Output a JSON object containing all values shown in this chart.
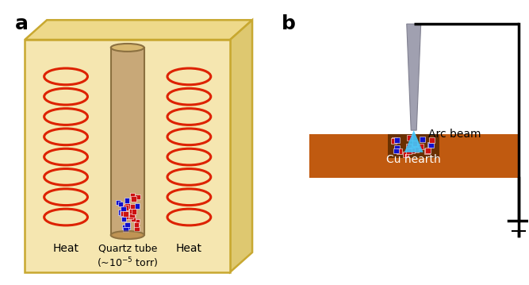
{
  "box_color": "#F5E6B0",
  "box_edge_color": "#C8A830",
  "box_edge_color2": "#D4B84A",
  "coil_color": "#DD2200",
  "tube_fill": "#C8A878",
  "tube_edge": "#8B7040",
  "tube_bottom_fill": "#E8D8A0",
  "cu_hearth_color": "#C05A10",
  "electrode_color": "#A0A0B0",
  "electrode_edge": "#808090",
  "arc_color": "#40C8FF",
  "red_cube_color": "#CC1111",
  "blue_cube_color": "#1111CC",
  "label_a": "a",
  "label_b": "b",
  "text_heat_left": "Heat",
  "text_heat_right": "Heat",
  "text_quartz": "Quartz tube",
  "text_torr": "(~10⁻⁵ torr)",
  "text_arc": "Arc beam",
  "text_cu": "Cu hearth",
  "bg_color": "#FFFFFF"
}
